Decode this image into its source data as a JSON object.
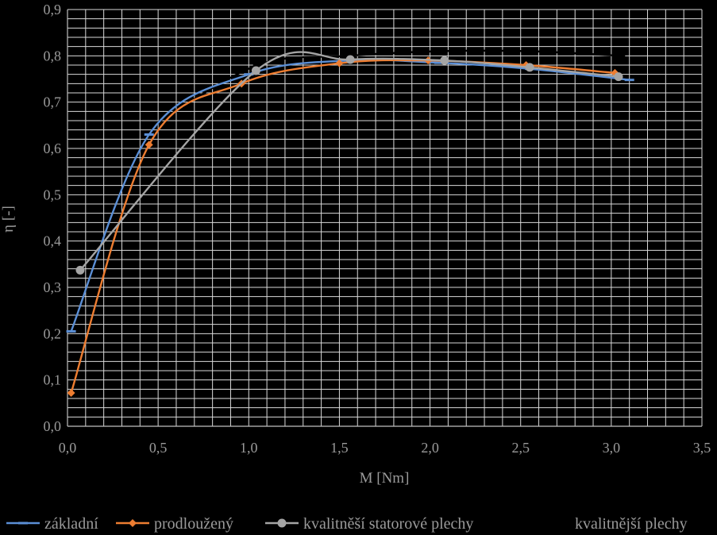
{
  "chart_data": {
    "type": "line",
    "title": "",
    "xlabel": "M [Nm]",
    "ylabel": "η [-]",
    "xlim": [
      0,
      3.5
    ],
    "ylim": [
      0,
      0.9
    ],
    "x_ticks": [
      "0,0",
      "0,5",
      "1,0",
      "1,5",
      "2,0",
      "2,5",
      "3,0",
      "3,5"
    ],
    "y_ticks": [
      "0,0",
      "0,1",
      "0,2",
      "0,3",
      "0,4",
      "0,5",
      "0,6",
      "0,7",
      "0,8",
      "0,9"
    ],
    "grid": true,
    "legend_position": "bottom",
    "series": [
      {
        "name": "základní",
        "color": "#5b8fd6",
        "marker": "dash",
        "points": [
          [
            0.02,
            0.205
          ],
          [
            0.45,
            0.63
          ],
          [
            1.0,
            0.76
          ],
          [
            1.55,
            0.79
          ],
          [
            2.05,
            0.785
          ],
          [
            2.55,
            0.772
          ],
          [
            3.1,
            0.748
          ]
        ]
      },
      {
        "name": "prodloužený",
        "color": "#ed7d31",
        "marker": "diamond",
        "points": [
          [
            0.02,
            0.072
          ],
          [
            0.45,
            0.608
          ],
          [
            0.96,
            0.74
          ],
          [
            1.5,
            0.784
          ],
          [
            1.99,
            0.79
          ],
          [
            2.53,
            0.78
          ],
          [
            3.02,
            0.763
          ]
        ]
      },
      {
        "name": "kvalitněší statorové plechy",
        "color": "#a5a5a5",
        "marker": "circle",
        "points": [
          [
            0.07,
            0.337
          ],
          [
            1.04,
            0.768
          ],
          [
            1.56,
            0.792
          ],
          [
            2.08,
            0.79
          ],
          [
            2.55,
            0.775
          ],
          [
            3.04,
            0.755
          ]
        ]
      },
      {
        "name": "kvalitnější plechy",
        "color": "#000000",
        "marker": "dash",
        "points": [
          [
            0.47,
            0.65
          ],
          [
            1.05,
            0.78
          ],
          [
            1.55,
            0.8
          ],
          [
            2.05,
            0.81
          ],
          [
            2.55,
            0.81
          ],
          [
            3.05,
            0.8
          ]
        ]
      }
    ]
  }
}
